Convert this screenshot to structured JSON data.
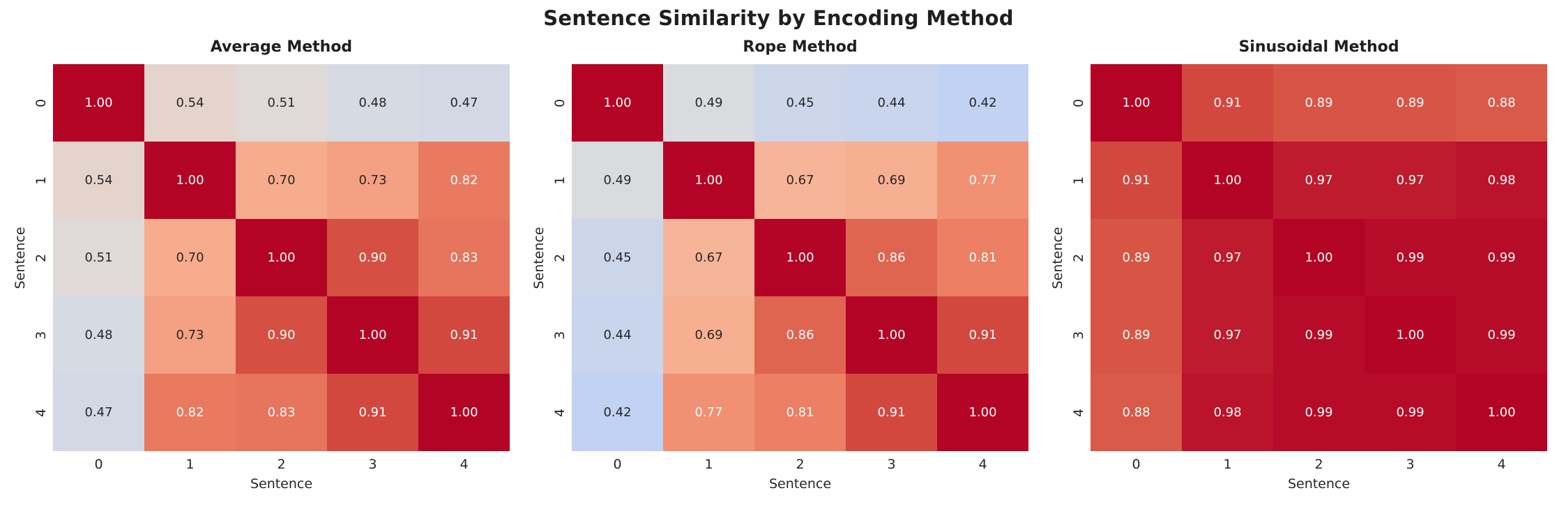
{
  "title": "Sentence Similarity by Encoding Method",
  "chart_data": [
    {
      "type": "heatmap",
      "title": "Average Method",
      "xlabel": "Sentence",
      "ylabel": "Sentence",
      "x": [
        "0",
        "1",
        "2",
        "3",
        "4"
      ],
      "y": [
        "0",
        "1",
        "2",
        "3",
        "4"
      ],
      "vmin": 0,
      "vmax": 1,
      "colormap": "coolwarm",
      "annot_format": ".2f",
      "colorbar": false,
      "values": [
        [
          1.0,
          0.54,
          0.51,
          0.48,
          0.47
        ],
        [
          0.54,
          1.0,
          0.7,
          0.73,
          0.82
        ],
        [
          0.51,
          0.7,
          1.0,
          0.9,
          0.83
        ],
        [
          0.48,
          0.73,
          0.9,
          1.0,
          0.91
        ],
        [
          0.47,
          0.82,
          0.83,
          0.91,
          1.0
        ]
      ]
    },
    {
      "type": "heatmap",
      "title": "Rope Method",
      "xlabel": "Sentence",
      "ylabel": "Sentence",
      "x": [
        "0",
        "1",
        "2",
        "3",
        "4"
      ],
      "y": [
        "0",
        "1",
        "2",
        "3",
        "4"
      ],
      "vmin": 0,
      "vmax": 1,
      "colormap": "coolwarm",
      "annot_format": ".2f",
      "colorbar": false,
      "values": [
        [
          1.0,
          0.49,
          0.45,
          0.44,
          0.42
        ],
        [
          0.49,
          1.0,
          0.67,
          0.69,
          0.77
        ],
        [
          0.45,
          0.67,
          1.0,
          0.86,
          0.81
        ],
        [
          0.44,
          0.69,
          0.86,
          1.0,
          0.91
        ],
        [
          0.42,
          0.77,
          0.81,
          0.91,
          1.0
        ]
      ]
    },
    {
      "type": "heatmap",
      "title": "Sinusoidal Method",
      "xlabel": "Sentence",
      "ylabel": "Sentence",
      "x": [
        "0",
        "1",
        "2",
        "3",
        "4"
      ],
      "y": [
        "0",
        "1",
        "2",
        "3",
        "4"
      ],
      "vmin": 0,
      "vmax": 1,
      "colormap": "coolwarm",
      "annot_format": ".2f",
      "colorbar": false,
      "values": [
        [
          1.0,
          0.91,
          0.89,
          0.89,
          0.88
        ],
        [
          0.91,
          1.0,
          0.97,
          0.97,
          0.98
        ],
        [
          0.89,
          0.97,
          1.0,
          0.99,
          0.99
        ],
        [
          0.89,
          0.97,
          0.99,
          1.0,
          0.99
        ],
        [
          0.88,
          0.98,
          0.99,
          0.99,
          1.0
        ]
      ]
    }
  ],
  "colors": {
    "background": "#ffffff",
    "text": "#262626",
    "annot_dark": "#262626",
    "annot_light": "#ffffff",
    "diag_max": "#B40426",
    "colormap_anchors": [
      [
        0.0,
        "#3B4CC0"
      ],
      [
        0.1,
        "#5977E3"
      ],
      [
        0.2,
        "#7B9FF9"
      ],
      [
        0.3,
        "#9ABBFF"
      ],
      [
        0.4,
        "#BAD0F8"
      ],
      [
        0.5,
        "#DDDCDC"
      ],
      [
        0.6,
        "#F2C9B4"
      ],
      [
        0.7,
        "#F7AC8E"
      ],
      [
        0.8,
        "#EE8468"
      ],
      [
        0.9,
        "#D55042"
      ],
      [
        1.0,
        "#B40426"
      ]
    ]
  }
}
